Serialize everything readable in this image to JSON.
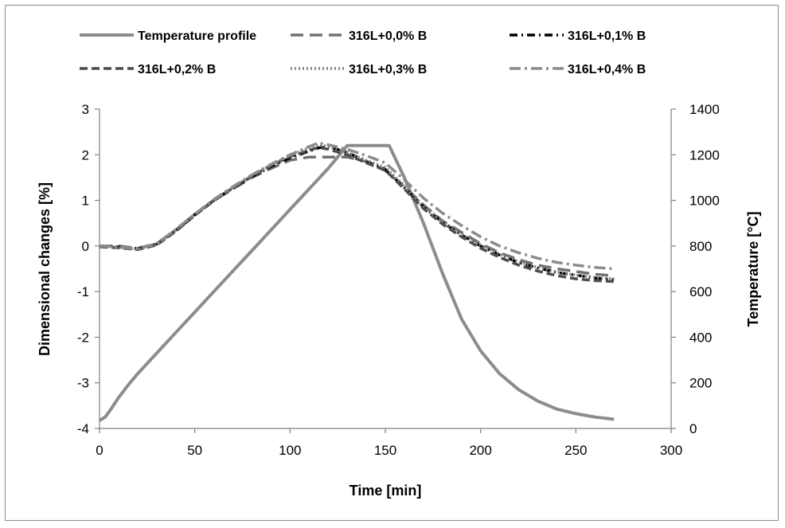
{
  "chart_data": {
    "type": "line",
    "title": "",
    "xlabel": "Time [min]",
    "ylabel": "Dimensional changes [%]",
    "y2label": "Temperature [°C]",
    "xlim": [
      0,
      300
    ],
    "ylim": [
      -4,
      3
    ],
    "y2lim": [
      0,
      1400
    ],
    "x_ticks": [
      "0",
      "50",
      "100",
      "150",
      "200",
      "250",
      "300"
    ],
    "y_ticks": [
      "3",
      "2",
      "1",
      "0",
      "-1",
      "-2",
      "-3",
      "-4"
    ],
    "y2_ticks": [
      "1400",
      "1200",
      "1000",
      "800",
      "600",
      "400",
      "200",
      "0"
    ],
    "grid": false,
    "legend_position": "top",
    "series": [
      {
        "name": "Temperature profile",
        "axis": "right",
        "color": "#8c8c8c",
        "dash": "solid",
        "x": [
          0,
          3,
          6,
          10,
          15,
          20,
          30,
          40,
          50,
          60,
          70,
          80,
          90,
          100,
          110,
          120,
          130,
          140,
          150,
          152,
          160,
          170,
          180,
          190,
          200,
          210,
          220,
          230,
          240,
          250,
          260,
          270
        ],
        "y": [
          35,
          50,
          85,
          135,
          190,
          240,
          330,
          420,
          510,
          600,
          690,
          780,
          870,
          960,
          1050,
          1140,
          1240,
          1240,
          1240,
          1240,
          1100,
          900,
          680,
          480,
          340,
          240,
          170,
          120,
          85,
          65,
          50,
          40
        ]
      },
      {
        "name": "316L+0,0% B",
        "axis": "left",
        "color": "#707070",
        "dash": "16,8",
        "x": [
          0,
          10,
          20,
          30,
          40,
          50,
          60,
          70,
          80,
          90,
          100,
          110,
          115,
          120,
          130,
          140,
          150,
          160,
          170,
          180,
          190,
          200,
          210,
          220,
          230,
          240,
          250,
          260,
          270
        ],
        "y": [
          0,
          0,
          -0.05,
          0.05,
          0.35,
          0.7,
          1.0,
          1.25,
          1.5,
          1.7,
          1.88,
          1.95,
          1.95,
          1.95,
          1.95,
          1.85,
          1.65,
          1.3,
          0.9,
          0.55,
          0.3,
          0.05,
          -0.15,
          -0.3,
          -0.42,
          -0.5,
          -0.56,
          -0.62,
          -0.65
        ]
      },
      {
        "name": "316L+0,1% B",
        "axis": "left",
        "color": "#000000",
        "dash": "10,5,2,5",
        "x": [
          0,
          10,
          20,
          30,
          40,
          50,
          60,
          70,
          80,
          90,
          100,
          110,
          115,
          120,
          130,
          140,
          150,
          160,
          170,
          180,
          190,
          200,
          210,
          220,
          230,
          240,
          250,
          260,
          270
        ],
        "y": [
          0,
          -0.02,
          -0.06,
          0.04,
          0.33,
          0.68,
          1.0,
          1.27,
          1.52,
          1.74,
          1.93,
          2.08,
          2.15,
          2.18,
          2.05,
          1.85,
          1.68,
          1.28,
          0.86,
          0.52,
          0.24,
          0.0,
          -0.2,
          -0.36,
          -0.48,
          -0.58,
          -0.64,
          -0.7,
          -0.74
        ]
      },
      {
        "name": "316L+0,2% B",
        "axis": "left",
        "color": "#4d4d4d",
        "dash": "10,5",
        "x": [
          0,
          10,
          20,
          30,
          40,
          50,
          60,
          70,
          80,
          90,
          100,
          110,
          115,
          120,
          130,
          140,
          150,
          160,
          170,
          180,
          190,
          200,
          210,
          220,
          230,
          240,
          250,
          260,
          270
        ],
        "y": [
          -0.02,
          -0.04,
          -0.08,
          0.02,
          0.32,
          0.67,
          0.99,
          1.27,
          1.53,
          1.76,
          1.96,
          2.1,
          2.16,
          2.12,
          2.0,
          1.82,
          1.66,
          1.25,
          0.82,
          0.48,
          0.2,
          -0.05,
          -0.25,
          -0.42,
          -0.55,
          -0.65,
          -0.72,
          -0.76,
          -0.78
        ]
      },
      {
        "name": "316L+0,3% B",
        "axis": "left",
        "color": "#808080",
        "dash": "2,3",
        "x": [
          0,
          10,
          20,
          30,
          40,
          50,
          60,
          70,
          80,
          90,
          100,
          110,
          115,
          120,
          130,
          140,
          150,
          160,
          170,
          180,
          190,
          200,
          210,
          220,
          230,
          240,
          250,
          260,
          270
        ],
        "y": [
          -0.01,
          -0.03,
          -0.07,
          0.03,
          0.34,
          0.69,
          1.01,
          1.29,
          1.55,
          1.78,
          1.98,
          2.15,
          2.22,
          2.18,
          2.05,
          1.88,
          1.72,
          1.32,
          0.88,
          0.54,
          0.26,
          0.02,
          -0.18,
          -0.35,
          -0.47,
          -0.57,
          -0.64,
          -0.69,
          -0.72
        ]
      },
      {
        "name": "316L+0,4% B",
        "axis": "left",
        "color": "#8c8c8c",
        "dash": "14,5,3,5",
        "x": [
          0,
          10,
          20,
          30,
          40,
          50,
          60,
          70,
          80,
          90,
          100,
          110,
          115,
          120,
          130,
          140,
          150,
          160,
          170,
          180,
          190,
          200,
          210,
          220,
          230,
          240,
          250,
          260,
          270
        ],
        "y": [
          0,
          -0.02,
          -0.06,
          0.05,
          0.36,
          0.7,
          1.02,
          1.3,
          1.56,
          1.79,
          2.0,
          2.18,
          2.26,
          2.22,
          2.12,
          1.98,
          1.82,
          1.45,
          1.05,
          0.72,
          0.45,
          0.2,
          0.0,
          -0.15,
          -0.27,
          -0.36,
          -0.42,
          -0.47,
          -0.5
        ]
      }
    ]
  }
}
